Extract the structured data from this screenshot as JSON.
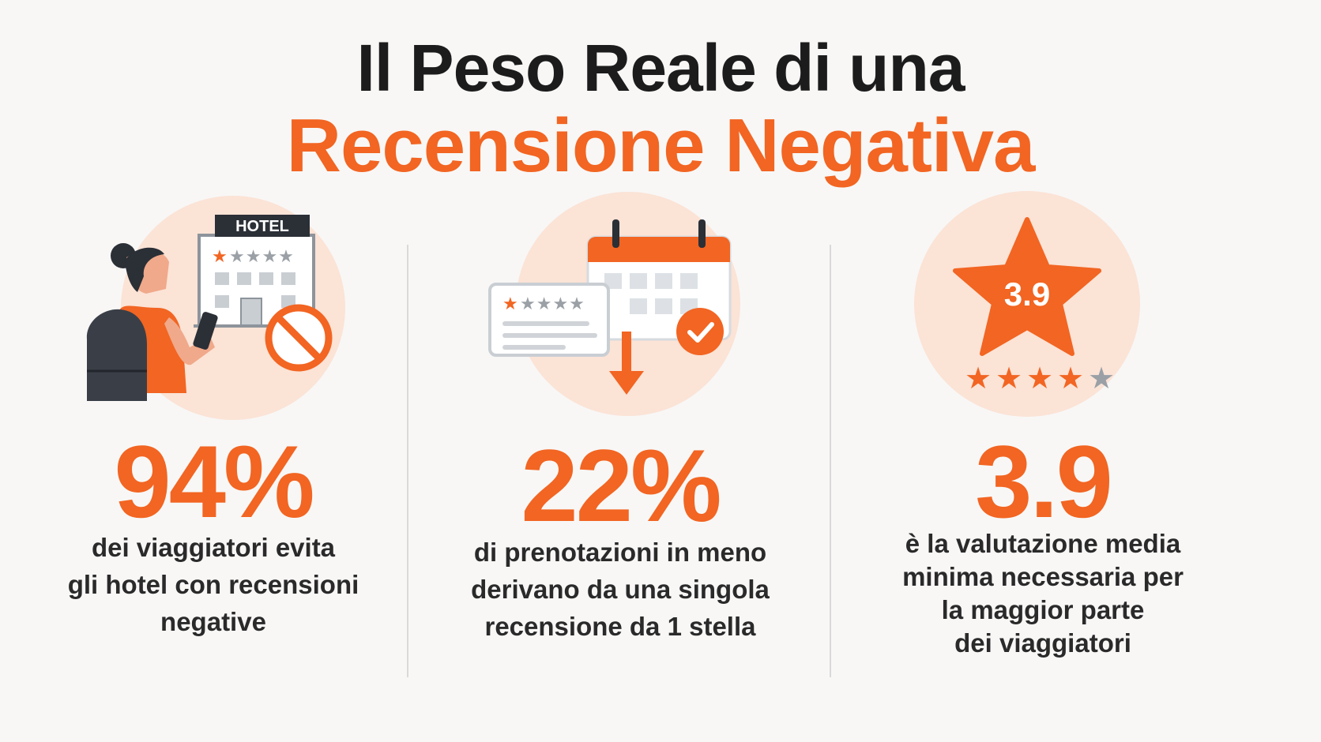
{
  "title": {
    "line1": "Il Peso Reale di una",
    "line2": "Recensione Negativa"
  },
  "colors": {
    "accent": "#f26522",
    "circle": "#fbe3d6",
    "dark": "#1c1c1c",
    "grey_star": "#9aa0a6"
  },
  "stats": [
    {
      "value": "94%",
      "icon": "traveler-hotel-no-icon",
      "hotel_sign": "HOTEL",
      "description": [
        "dei viaggiatori evita",
        "gli hotel con recensioni",
        "negative"
      ]
    },
    {
      "value": "22%",
      "icon": "review-calendar-down-icon",
      "description": [
        "di prenotazioni in meno",
        "derivano da una singola",
        "recensione da 1 stella"
      ]
    },
    {
      "value": "3.9",
      "icon": "star-rating-icon",
      "star_label": "3.9",
      "rating_stars_filled": 4,
      "rating_stars_total": 5,
      "description": [
        "è la valutazione media",
        "minima necessaria per",
        "la maggior parte",
        "dei viaggiatori"
      ]
    }
  ]
}
